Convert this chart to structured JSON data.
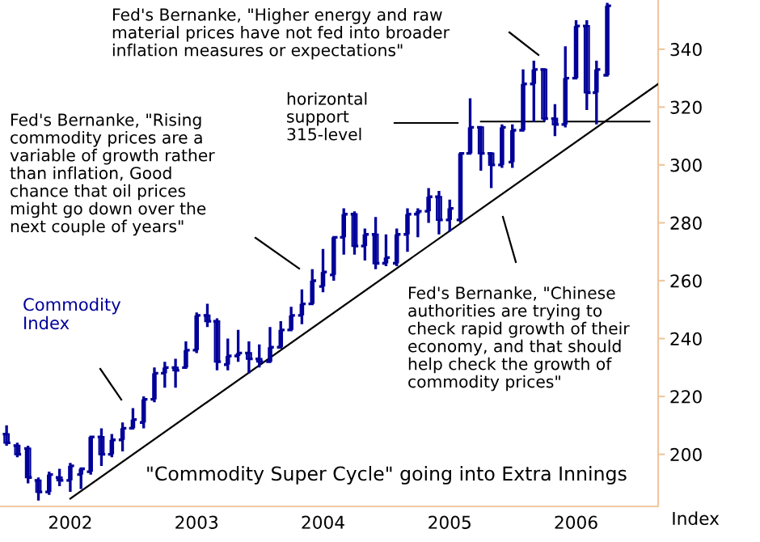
{
  "chart_data": {
    "type": "candlestick",
    "x": [
      "2001-07",
      "2001-08",
      "2001-09",
      "2001-10",
      "2001-11",
      "2001-12",
      "2002-01",
      "2002-02",
      "2002-03",
      "2002-04",
      "2002-05",
      "2002-06",
      "2002-07",
      "2002-08",
      "2002-09",
      "2002-10",
      "2002-11",
      "2002-12",
      "2003-01",
      "2003-02",
      "2003-03",
      "2003-04",
      "2003-05",
      "2003-06",
      "2003-07",
      "2003-08",
      "2003-09",
      "2003-10",
      "2003-11",
      "2003-12",
      "2004-01",
      "2004-02",
      "2004-03",
      "2004-04",
      "2004-05",
      "2004-06",
      "2004-07",
      "2004-08",
      "2004-09",
      "2004-10",
      "2004-11",
      "2004-12",
      "2005-01",
      "2005-02",
      "2005-03",
      "2005-04",
      "2005-05",
      "2005-06",
      "2005-07",
      "2005-08",
      "2005-09",
      "2005-10",
      "2005-11",
      "2005-12",
      "2006-01",
      "2006-02",
      "2006-03",
      "2006-04"
    ],
    "series": [
      {
        "name": "Commodity Index",
        "color": "#000099",
        "ohlc": [
          [
            207,
            210,
            203,
            204
          ],
          [
            203,
            204,
            199,
            200
          ],
          [
            202,
            203,
            190,
            192
          ],
          [
            191,
            192,
            184,
            187
          ],
          [
            187,
            194,
            186,
            193
          ],
          [
            192,
            195,
            189,
            191
          ],
          [
            191,
            197,
            187,
            196
          ],
          [
            193,
            195,
            188,
            195
          ],
          [
            194,
            206,
            193,
            206
          ],
          [
            206,
            209,
            196,
            200
          ],
          [
            200,
            207,
            199,
            205
          ],
          [
            205,
            211,
            201,
            209
          ],
          [
            209,
            216,
            209,
            212
          ],
          [
            211,
            220,
            209,
            219
          ],
          [
            219,
            230,
            218,
            228
          ],
          [
            228,
            232,
            223,
            230
          ],
          [
            230,
            233,
            223,
            229
          ],
          [
            230,
            239,
            230,
            236
          ],
          [
            236,
            249,
            235,
            248
          ],
          [
            248,
            252,
            244,
            246
          ],
          [
            246,
            247,
            229,
            232
          ],
          [
            231,
            240,
            229,
            234
          ],
          [
            234,
            243,
            232,
            235
          ],
          [
            235,
            239,
            228,
            233
          ],
          [
            233,
            238,
            230,
            232
          ],
          [
            232,
            244,
            232,
            237
          ],
          [
            237,
            246,
            237,
            243
          ],
          [
            243,
            251,
            243,
            248
          ],
          [
            248,
            257,
            245,
            252
          ],
          [
            252,
            264,
            252,
            260
          ],
          [
            258,
            271,
            256,
            263
          ],
          [
            262,
            275,
            260,
            275
          ],
          [
            275,
            285,
            269,
            283
          ],
          [
            283,
            284,
            269,
            272
          ],
          [
            272,
            278,
            267,
            276
          ],
          [
            276,
            282,
            264,
            266
          ],
          [
            266,
            276,
            265,
            268
          ],
          [
            266,
            278,
            265,
            276
          ],
          [
            276,
            285,
            270,
            283
          ],
          [
            283,
            285,
            275,
            284
          ],
          [
            284,
            292,
            280,
            289
          ],
          [
            289,
            291,
            276,
            281
          ],
          [
            281,
            288,
            277,
            285
          ],
          [
            281,
            304,
            280,
            304
          ],
          [
            304,
            323,
            304,
            313
          ],
          [
            313,
            313,
            298,
            304
          ],
          [
            304,
            304,
            292,
            300
          ],
          [
            300,
            314,
            299,
            313
          ],
          [
            301,
            314,
            299,
            312
          ],
          [
            312,
            333,
            312,
            328
          ],
          [
            328,
            336,
            315,
            333
          ],
          [
            333,
            333,
            315,
            316
          ],
          [
            316,
            321,
            310,
            314
          ],
          [
            314,
            341,
            313,
            330
          ],
          [
            330,
            350,
            330,
            348
          ],
          [
            348,
            350,
            319,
            325
          ],
          [
            325,
            336,
            314,
            333
          ],
          [
            331,
            356,
            331,
            355
          ]
        ]
      },
      {
        "type": "line",
        "x": [
          "2002-01",
          "2006-08-25"
        ],
        "values": [
          184.7,
          327.9
        ],
        "color": "#000000"
      },
      {
        "type": "line",
        "x": [
          "2005-04",
          "2005-10",
          "2005-11",
          "2005-12",
          "2006-08"
        ],
        "values": [
          315,
          315,
          null,
          315,
          315
        ],
        "color": "#000000"
      }
    ],
    "annotations": [
      "Fed's Bernanke, \"Higher energy and raw\nmaterial prices have not fed into broader\ninflation measures or expectations\"",
      "Fed's Bernanke, \"Rising\ncommodity prices are a\nvariable of growth rather\nthan inflation, Good\nchance that oil prices\nmight go down over the\nnext couple of years\"",
      "horizontal\nsupport\n315-level",
      "Fed's Bernanke, \"Chinese\nauthorities are trying to\ncheck rapid growth of their\neconomy, and that should\nhelp check the growth of\ncommodity prices\"",
      "\"Commodity Super Cycle\" going into Extra Innings"
    ],
    "ylabel": "Index",
    "xlim": [
      "2001-06-12",
      "2006-08-26"
    ],
    "xticks": [
      "2002",
      "2003",
      "2004",
      "2005",
      "2006"
    ],
    "ylim": [
      182,
      357
    ],
    "yticks": [
      200,
      220,
      240,
      260,
      280,
      300,
      320,
      340
    ],
    "grid": false,
    "legend": false
  }
}
